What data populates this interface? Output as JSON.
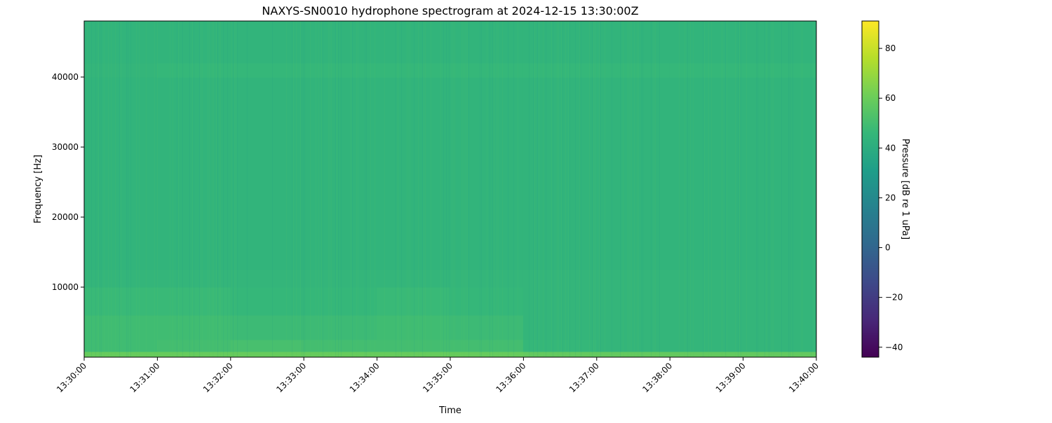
{
  "chart_data": {
    "type": "heatmap",
    "title": "NAXYS-SN0010 hydrophone spectrogram at 2024-12-15 13:30:00Z",
    "xlabel": "Time",
    "ylabel": "Frequency [Hz]",
    "x_tick_labels": [
      "13:30:00",
      "13:31:00",
      "13:32:00",
      "13:33:00",
      "13:34:00",
      "13:35:00",
      "13:36:00",
      "13:37:00",
      "13:38:00",
      "13:39:00",
      "13:40:00"
    ],
    "xlim": [
      "13:30:00",
      "13:40:00"
    ],
    "y_ticks": [
      10000,
      20000,
      30000,
      40000
    ],
    "ylim": [
      0,
      48000
    ],
    "colormap": "viridis",
    "colorbar": {
      "label": "Pressure [dB re 1 uPa]",
      "ticks": [
        -40,
        -20,
        0,
        20,
        40,
        60,
        80
      ],
      "range": [
        -44,
        91
      ]
    },
    "time_bins": [
      "13:30:00",
      "13:31:00",
      "13:32:00",
      "13:33:00",
      "13:34:00",
      "13:35:00",
      "13:36:00",
      "13:37:00",
      "13:38:00",
      "13:39:00"
    ],
    "frequency_band_edges_hz": [
      0,
      800,
      2500,
      6000,
      10000,
      12500,
      40000,
      42000,
      48000
    ],
    "values_db": [
      [
        59,
        59,
        59,
        59,
        59,
        59,
        58,
        58,
        58,
        58
      ],
      [
        49,
        50,
        51,
        50,
        50,
        50,
        46,
        45,
        45,
        45
      ],
      [
        49,
        49,
        48,
        48,
        49,
        48,
        45,
        45,
        45,
        45
      ],
      [
        47,
        47,
        46,
        46,
        47,
        46,
        45,
        45,
        45,
        45
      ],
      [
        45,
        45,
        45,
        45,
        45,
        45,
        45,
        45,
        45,
        45
      ],
      [
        44,
        44,
        44,
        44,
        44,
        44,
        44,
        44,
        44,
        44
      ],
      [
        45,
        46,
        46,
        46,
        46,
        46,
        46,
        46,
        46,
        46
      ],
      [
        44,
        44,
        44,
        44,
        44,
        44,
        44,
        44,
        44,
        44
      ]
    ]
  }
}
